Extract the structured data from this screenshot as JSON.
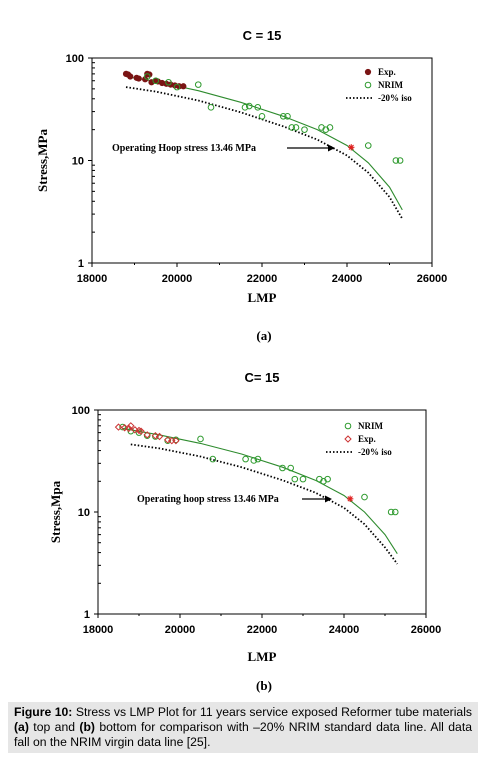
{
  "caption": {
    "label": "Figure 10:",
    "text_1": " Stress vs LMP Plot for 11 years service exposed Reformer tube materials ",
    "a": "(a)",
    "text_2": " top and ",
    "b": "(b)",
    "text_3": " bottom for comparison with –20% NRIM standard data line. All data fall on the NRIM virgin data line [25]."
  },
  "colors": {
    "exp_a": "#7a1414",
    "exp_b": "#cc3333",
    "nrim": "#2e9a2e",
    "fit_line": "#2e8b2e",
    "iso_line": "#000000",
    "operating_point": "#e02020"
  },
  "chart_data": [
    {
      "type": "scatter",
      "panel_label": "(a)",
      "title": "C = 15",
      "xlabel": "LMP",
      "ylabel": "Stress,MPa",
      "xlim": [
        18000,
        26000
      ],
      "ylim": [
        1,
        100
      ],
      "yscale": "log",
      "x_ticks": [
        "18000",
        "20000",
        "22000",
        "24000",
        "26000"
      ],
      "y_ticks": [
        "1",
        "10",
        "100"
      ],
      "grid": false,
      "legend_position": "top-right",
      "legend": [
        {
          "label": "Exp.",
          "marker": "dot"
        },
        {
          "label": "NRIM",
          "marker": "circle"
        },
        {
          "label": "-20% iso",
          "marker": "dotted-line"
        }
      ],
      "series": [
        {
          "name": "Exp.",
          "marker": "dot",
          "x": [
            18800,
            18850,
            18900,
            19050,
            19100,
            19250,
            19300,
            19350,
            19400,
            19500,
            19550,
            19650,
            19750,
            19850,
            19950,
            20050,
            20150
          ],
          "y": [
            70,
            69,
            66,
            64,
            63,
            62,
            70,
            69,
            58,
            60,
            59,
            57,
            56,
            55,
            54,
            53,
            53
          ]
        },
        {
          "name": "NRIM",
          "marker": "circle",
          "x": [
            19300,
            19500,
            19800,
            20000,
            20500,
            20800,
            21600,
            21700,
            21900,
            22000,
            22500,
            22600,
            22700,
            22800,
            23000,
            23400,
            23500,
            23600,
            24500,
            25150,
            25250
          ],
          "y": [
            66,
            60,
            58,
            52,
            55,
            33,
            33,
            34,
            33,
            27,
            27,
            27,
            21,
            21,
            20,
            21,
            20,
            21,
            14,
            10,
            10
          ]
        },
        {
          "name": "Operating point",
          "marker": "star",
          "x": [
            24100
          ],
          "y": [
            13.46
          ]
        }
      ],
      "lines": [
        {
          "name": "NRIM fit",
          "style": "solid",
          "x": [
            18800,
            19500,
            20500,
            21500,
            22500,
            23300,
            24000,
            24500,
            25000,
            25300
          ],
          "y": [
            66,
            59,
            48,
            37,
            27,
            20,
            14,
            9.5,
            5.5,
            3.3
          ]
        },
        {
          "name": "-20% iso",
          "style": "dotted",
          "x": [
            18800,
            19500,
            20500,
            21500,
            22500,
            23300,
            24000,
            24500,
            25000,
            25300
          ],
          "y": [
            52,
            47,
            38.5,
            29.5,
            21.5,
            16,
            11.2,
            7.6,
            4.4,
            2.7
          ]
        }
      ],
      "annotation": {
        "text": "Operating  Hoop stress 13.46 MPa",
        "points_to": [
          24100,
          13.46
        ]
      }
    },
    {
      "type": "scatter",
      "panel_label": "(b)",
      "title": "C= 15",
      "xlabel": "LMP",
      "ylabel": "Stress,Mpa",
      "xlim": [
        18000,
        26000
      ],
      "ylim": [
        1,
        100
      ],
      "yscale": "log",
      "x_ticks": [
        "18000",
        "20000",
        "22000",
        "24000",
        "26000"
      ],
      "y_ticks": [
        "1",
        "10",
        "100"
      ],
      "grid": false,
      "legend_position": "top-right",
      "legend": [
        {
          "label": "NRIM",
          "marker": "circle"
        },
        {
          "label": "Exp.",
          "marker": "diamond"
        },
        {
          "label": "-20% iso",
          "marker": "dotted-line"
        }
      ],
      "series": [
        {
          "name": "NRIM",
          "marker": "circle",
          "x": [
            18600,
            18800,
            19000,
            19200,
            19400,
            19700,
            19900,
            20500,
            20800,
            21600,
            21800,
            21900,
            22500,
            22700,
            22800,
            23000,
            23400,
            23500,
            23600,
            24500,
            25150,
            25250
          ],
          "y": [
            68,
            62,
            60,
            56,
            55,
            50,
            51,
            52,
            33,
            33,
            32,
            33,
            27,
            27,
            21,
            21,
            21,
            20,
            21,
            14,
            10,
            10
          ]
        },
        {
          "name": "Exp.",
          "marker": "diamond",
          "x": [
            18500,
            18650,
            18750,
            18800,
            18900,
            19000,
            19050,
            19200,
            19400,
            19500,
            19700,
            19800,
            19900
          ],
          "y": [
            68,
            67,
            66,
            70,
            64,
            63,
            62,
            57,
            56,
            55,
            51,
            50,
            50
          ]
        },
        {
          "name": "Operating point",
          "marker": "star",
          "x": [
            24150
          ],
          "y": [
            13.46
          ]
        }
      ],
      "lines": [
        {
          "name": "NRIM fit",
          "style": "solid",
          "x": [
            18600,
            19500,
            20500,
            21500,
            22500,
            23300,
            24000,
            24500,
            25000,
            25300
          ],
          "y": [
            66,
            57,
            47,
            37,
            27.5,
            20.5,
            14.5,
            10,
            6,
            3.9
          ]
        },
        {
          "name": "-20% iso",
          "style": "dotted",
          "x": [
            18800,
            19500,
            20500,
            21500,
            22500,
            23300,
            24000,
            24500,
            25000,
            25300
          ],
          "y": [
            46,
            42,
            35,
            27.5,
            20.5,
            15.5,
            11,
            7.6,
            4.5,
            3.1
          ]
        }
      ],
      "annotation": {
        "text": "Operating hoop stress  13.46 MPa",
        "points_to": [
          24150,
          13.46
        ]
      }
    }
  ]
}
